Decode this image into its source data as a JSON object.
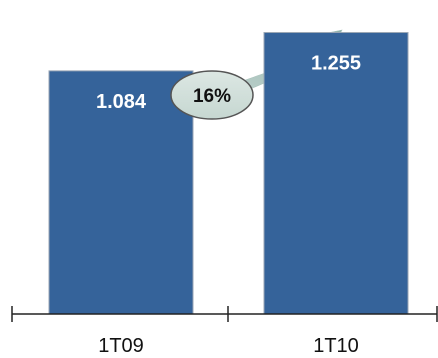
{
  "chart_data": {
    "type": "bar",
    "categories": [
      "1T09",
      "1T10"
    ],
    "values": [
      1084,
      1255
    ],
    "value_labels": [
      "1.084",
      "1.255"
    ],
    "ylim": [
      0,
      1400
    ],
    "grid": false,
    "annotation": {
      "label": "16%",
      "from_category": "1T09",
      "to_category": "1T10"
    },
    "colors": {
      "bar": "#35639a",
      "bar_border": "#9aa6b4",
      "arrow_light": "#eef3f1",
      "arrow_dark": "#8fb1a9",
      "badge_fill": "#c6d7d1",
      "badge_border": "#555555"
    }
  }
}
